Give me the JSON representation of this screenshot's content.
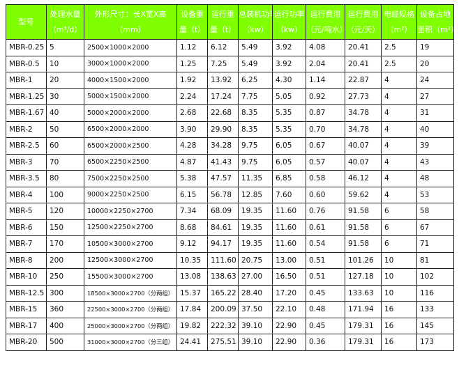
{
  "table": {
    "headers": [
      {
        "line1": "型号",
        "line2": ""
      },
      {
        "line1": "处理水量",
        "line2": "（m³/d）"
      },
      {
        "line1": "外形尺寸：长X宽X高",
        "line2": "（mm）"
      },
      {
        "line1": "设备重",
        "line2": "量（t）"
      },
      {
        "line1": "运行重",
        "line2": "量（t）"
      },
      {
        "line1": "总装机功率",
        "line2": "（kw）"
      },
      {
        "line1": "运行功率",
        "line2": "（kw）"
      },
      {
        "line1": "运行费用",
        "line2": "（元/吨水）"
      },
      {
        "line1": "运行费用",
        "line2": "（元/天）"
      },
      {
        "line1": "电缆规格",
        "line2": "（m²）"
      },
      {
        "line1": "设备占地",
        "line2": "面积（m²）"
      }
    ],
    "rows": [
      [
        "MBR-0.25",
        "5",
        "2500×1000×2000",
        "1.12",
        "6.12",
        "5.49",
        "3.92",
        "4.08",
        "20.41",
        "2.5",
        "19"
      ],
      [
        "MBR-0.5",
        "10",
        "3000×1000×2000",
        "1.25",
        "7.25",
        "5.49",
        "3.92",
        "2.04",
        "20.41",
        "2.5",
        "20"
      ],
      [
        "MBR-1",
        "20",
        "4000×1500×2000",
        "1.92",
        "13.92",
        "6.25",
        "4.30",
        "1.14",
        "22.87",
        "4",
        "24"
      ],
      [
        "MBR-1.25",
        "30",
        "5000×1500×2000",
        "2.24",
        "17.24",
        "7.75",
        "5.05",
        "0.92",
        "27.73",
        "4",
        "27"
      ],
      [
        "MBR-1.67",
        "40",
        "5000×2000×2000",
        "2.68",
        "22.68",
        "8.35",
        "5.35",
        "0.87",
        "34.78",
        "4",
        "31"
      ],
      [
        "MBR-2",
        "50",
        "6500×2000×2000",
        "3.90",
        "29.90",
        "8.35",
        "5.35",
        "0.70",
        "34.78",
        "4",
        "40"
      ],
      [
        "MBR-2.5",
        "60",
        "6500×2000×2500",
        "4.28",
        "34.28",
        "9.75",
        "6.05",
        "0.67",
        "40.07",
        "4",
        "39"
      ],
      [
        "MBR-3",
        "70",
        "6500×2250×2500",
        "4.87",
        "41.43",
        "9.75",
        "6.05",
        "0.57",
        "40.07",
        "4",
        "43"
      ],
      [
        "MBR-3.5",
        "80",
        "7500×2250×2500",
        "5.38",
        "47.57",
        "11.35",
        "6.85",
        "0.58",
        "46.12",
        "4",
        "48"
      ],
      [
        "MBR-4",
        "100",
        "9000×2250×2500",
        "6.15",
        "56.78",
        "12.85",
        "7.60",
        "0.60",
        "59.62",
        "4",
        "53"
      ],
      [
        "MBR-5",
        "120",
        "10000×2250×2700",
        "7.34",
        "68.09",
        "19.35",
        "11.60",
        "0.76",
        "91.58",
        "6",
        "58"
      ],
      [
        "MBR-6",
        "150",
        "12500×2250×2700",
        "8.68",
        "84.61",
        "19.35",
        "11.60",
        "0.61",
        "91.58",
        "6",
        "67"
      ],
      [
        "MBR-7",
        "170",
        "10500×3000×2700",
        "9.12",
        "94.17",
        "19.35",
        "11.60",
        "0.54",
        "91.58",
        "6",
        "71"
      ],
      [
        "MBR-8",
        "200",
        "12500×3000×2700",
        "10.35",
        "111.60",
        "20.75",
        "13.00",
        "0.51",
        "101.26",
        "10",
        "81"
      ],
      [
        "MBR-10",
        "250",
        "15500×3000×2700",
        "13.08",
        "138.63",
        "27.00",
        "16.50",
        "0.51",
        "127.18",
        "10",
        "102"
      ],
      [
        "MBR-12.5",
        "300",
        "18500×3000×2700（分两组）",
        "15.37",
        "165.22",
        "28.40",
        "17.20",
        "0.45",
        "133.63",
        "10",
        "116"
      ],
      [
        "MBR-15",
        "360",
        "22500×3000×2700（分两组）",
        "17.84",
        "200.09",
        "37.50",
        "22.10",
        "0.48",
        "171.94",
        "16",
        "133"
      ],
      [
        "MBR-17",
        "400",
        "25000×3000×2700（分两组）",
        "19.82",
        "222.32",
        "39.10",
        "22.90",
        "0.45",
        "179.31",
        "16",
        "145"
      ],
      [
        "MBR-20",
        "500",
        "31000×3000×2700（分三组）",
        "24.41",
        "275.51",
        "39.10",
        "22.90",
        "0.36",
        "179.31",
        "16",
        "173"
      ]
    ]
  },
  "colors": {
    "header_bg": "#7fff00",
    "header_text": "#ffffff",
    "border": "#222222"
  }
}
